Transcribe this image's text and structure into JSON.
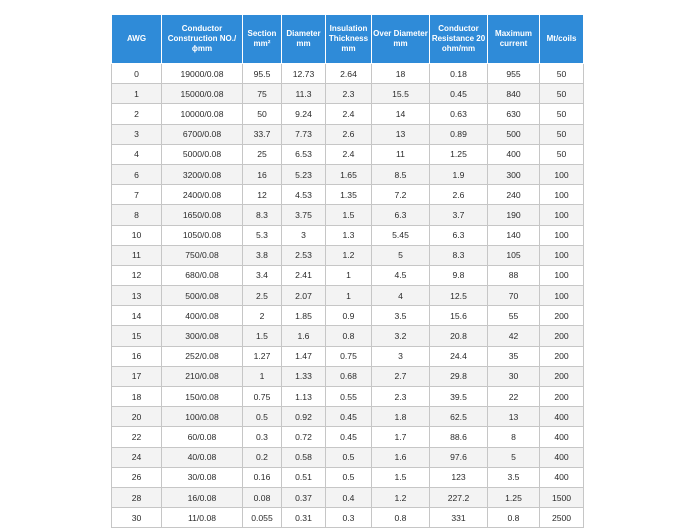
{
  "table": {
    "headers": [
      "AWG",
      "Conductor Construction NO./ϕmm",
      "Section mm²",
      "Diameter mm",
      "Insulation Thickness mm",
      "Over Diameter mm",
      "Conductor Resistance 20 ohm/mm",
      "Maximum current",
      "Mt/coils"
    ],
    "rows": [
      [
        "0",
        "19000/0.08",
        "95.5",
        "12.73",
        "2.64",
        "18",
        "0.18",
        "955",
        "50"
      ],
      [
        "1",
        "15000/0.08",
        "75",
        "11.3",
        "2.3",
        "15.5",
        "0.45",
        "840",
        "50"
      ],
      [
        "2",
        "10000/0.08",
        "50",
        "9.24",
        "2.4",
        "14",
        "0.63",
        "630",
        "50"
      ],
      [
        "3",
        "6700/0.08",
        "33.7",
        "7.73",
        "2.6",
        "13",
        "0.89",
        "500",
        "50"
      ],
      [
        "4",
        "5000/0.08",
        "25",
        "6.53",
        "2.4",
        "11",
        "1.25",
        "400",
        "50"
      ],
      [
        "6",
        "3200/0.08",
        "16",
        "5.23",
        "1.65",
        "8.5",
        "1.9",
        "300",
        "100"
      ],
      [
        "7",
        "2400/0.08",
        "12",
        "4.53",
        "1.35",
        "7.2",
        "2.6",
        "240",
        "100"
      ],
      [
        "8",
        "1650/0.08",
        "8.3",
        "3.75",
        "1.5",
        "6.3",
        "3.7",
        "190",
        "100"
      ],
      [
        "10",
        "1050/0.08",
        "5.3",
        "3",
        "1.3",
        "5.45",
        "6.3",
        "140",
        "100"
      ],
      [
        "11",
        "750/0.08",
        "3.8",
        "2.53",
        "1.2",
        "5",
        "8.3",
        "105",
        "100"
      ],
      [
        "12",
        "680/0.08",
        "3.4",
        "2.41",
        "1",
        "4.5",
        "9.8",
        "88",
        "100"
      ],
      [
        "13",
        "500/0.08",
        "2.5",
        "2.07",
        "1",
        "4",
        "12.5",
        "70",
        "100"
      ],
      [
        "14",
        "400/0.08",
        "2",
        "1.85",
        "0.9",
        "3.5",
        "15.6",
        "55",
        "200"
      ],
      [
        "15",
        "300/0.08",
        "1.5",
        "1.6",
        "0.8",
        "3.2",
        "20.8",
        "42",
        "200"
      ],
      [
        "16",
        "252/0.08",
        "1.27",
        "1.47",
        "0.75",
        "3",
        "24.4",
        "35",
        "200"
      ],
      [
        "17",
        "210/0.08",
        "1",
        "1.33",
        "0.68",
        "2.7",
        "29.8",
        "30",
        "200"
      ],
      [
        "18",
        "150/0.08",
        "0.75",
        "1.13",
        "0.55",
        "2.3",
        "39.5",
        "22",
        "200"
      ],
      [
        "20",
        "100/0.08",
        "0.5",
        "0.92",
        "0.45",
        "1.8",
        "62.5",
        "13",
        "400"
      ],
      [
        "22",
        "60/0.08",
        "0.3",
        "0.72",
        "0.45",
        "1.7",
        "88.6",
        "8",
        "400"
      ],
      [
        "24",
        "40/0.08",
        "0.2",
        "0.58",
        "0.5",
        "1.6",
        "97.6",
        "5",
        "400"
      ],
      [
        "26",
        "30/0.08",
        "0.16",
        "0.51",
        "0.5",
        "1.5",
        "123",
        "3.5",
        "400"
      ],
      [
        "28",
        "16/0.08",
        "0.08",
        "0.37",
        "0.4",
        "1.2",
        "227.2",
        "1.25",
        "1500"
      ],
      [
        "30",
        "11/0.08",
        "0.055",
        "0.31",
        "0.3",
        "0.8",
        "331",
        "0.8",
        "2500"
      ]
    ]
  }
}
